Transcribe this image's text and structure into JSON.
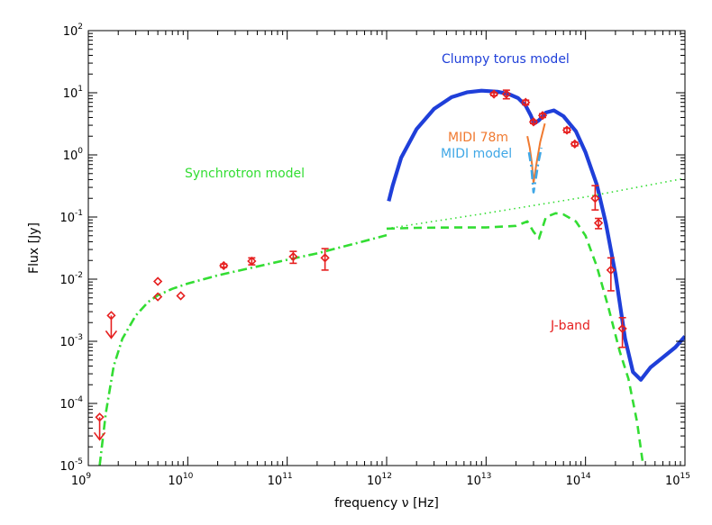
{
  "chart_data": {
    "type": "scatter",
    "title": "",
    "xlabel": "frequency ν [Hz]",
    "ylabel": "Flux [Jy]",
    "xscale": "log",
    "yscale": "log",
    "xlim": [
      1000000000.0,
      1000000000000000.0
    ],
    "ylim": [
      1e-05,
      100
    ],
    "x_ticks": [
      {
        "base": "10",
        "exp": "9"
      },
      {
        "base": "10",
        "exp": "10"
      },
      {
        "base": "10",
        "exp": "11"
      },
      {
        "base": "10",
        "exp": "12"
      },
      {
        "base": "10",
        "exp": "13"
      },
      {
        "base": "10",
        "exp": "14"
      },
      {
        "base": "10",
        "exp": "15"
      }
    ],
    "y_ticks": [
      {
        "base": "10",
        "exp": "-5"
      },
      {
        "base": "10",
        "exp": "-4"
      },
      {
        "base": "10",
        "exp": "-3"
      },
      {
        "base": "10",
        "exp": "-2"
      },
      {
        "base": "10",
        "exp": "-1"
      },
      {
        "base": "10",
        "exp": "0"
      },
      {
        "base": "10",
        "exp": "1"
      },
      {
        "base": "10",
        "exp": "2"
      }
    ],
    "annotations": [
      {
        "text": "Clumpy torus model",
        "color": "#1f3fd9"
      },
      {
        "text": "Synchrotron model",
        "color": "#33dd33"
      },
      {
        "text": "MIDI 78m",
        "color": "#f07a30"
      },
      {
        "text": "MIDI model",
        "color": "#3fa7e6"
      },
      {
        "text": "J-band",
        "color": "#e62020"
      }
    ],
    "series": [
      {
        "color": "#1f3fd9",
        "style": "solid-thick",
        "x": [
          1050000000000.0,
          1150000000000.0,
          1400000000000.0,
          2000000000000.0,
          3000000000000.0,
          4500000000000.0,
          6500000000000.0,
          9000000000000.0,
          13000000000000.0,
          17000000000000.0,
          21000000000000.0,
          25000000000000.0,
          28000000000000.0,
          30500000000000.0,
          34000000000000.0,
          40000000000000.0,
          48000000000000.0,
          60000000000000.0,
          80000000000000.0,
          100000000000000.0,
          130000000000000.0,
          160000000000000.0,
          200000000000000.0,
          250000000000000.0,
          300000000000000.0,
          360000000000000.0,
          450000000000000.0,
          600000000000000.0,
          800000000000000.0,
          1000000000000000.0
        ],
        "y": [
          0.18,
          0.32,
          0.9,
          2.6,
          5.5,
          8.5,
          10.2,
          10.8,
          10.4,
          9.5,
          8.2,
          6.2,
          4.4,
          3.2,
          3.6,
          4.8,
          5.2,
          4.2,
          2.4,
          1.1,
          0.33,
          0.08,
          0.012,
          0.0011,
          0.00032,
          0.00024,
          0.00038,
          0.00055,
          0.0008,
          0.0012
        ]
      },
      {
        "color": "#33dd33",
        "style": "dash-dot",
        "x": [
          1300000000.0,
          1500000000.0,
          1800000000.0,
          2200000000.0,
          3000000000.0,
          4000000000.0,
          5000000000.0,
          7000000000.0,
          10000000000.0,
          20000000000.0,
          50000000000.0,
          100000000000.0,
          200000000000.0,
          500000000000.0,
          1000000000000.0
        ],
        "y": [
          1e-05,
          7e-05,
          0.0004,
          0.0011,
          0.0026,
          0.0043,
          0.0055,
          0.007,
          0.0085,
          0.0115,
          0.016,
          0.0205,
          0.026,
          0.038,
          0.051
        ]
      },
      {
        "color": "#33dd33",
        "style": "dashed",
        "x": [
          1000000000000.0,
          2000000000000.0,
          5000000000000.0,
          10000000000000.0,
          20000000000000.0,
          26000000000000.0,
          30000000000000.0,
          34000000000000.0,
          40000000000000.0,
          50000000000000.0,
          60000000000000.0,
          80000000000000.0,
          100000000000000.0,
          130000000000000.0,
          170000000000000.0,
          220000000000000.0,
          270000000000000.0,
          330000000000000.0,
          380000000000000.0
        ],
        "y": [
          0.065,
          0.067,
          0.068,
          0.068,
          0.072,
          0.085,
          0.058,
          0.045,
          0.1,
          0.115,
          0.11,
          0.085,
          0.05,
          0.016,
          0.0035,
          0.0007,
          0.00025,
          5e-05,
          1e-05
        ]
      },
      {
        "color": "#33dd33",
        "style": "dotted",
        "x": [
          1000000000000.0,
          10000000000000.0,
          100000000000000.0,
          1000000000000000.0
        ],
        "y": [
          0.065,
          0.115,
          0.21,
          0.42
        ]
      },
      {
        "color": "#f07a30",
        "style": "solid",
        "x": [
          26000000000000.0,
          27500000000000.0,
          29000000000000.0,
          30000000000000.0,
          32000000000000.0,
          35000000000000.0,
          39000000000000.0
        ],
        "y": [
          2.0,
          1.3,
          0.7,
          0.35,
          0.7,
          1.6,
          3.2
        ]
      },
      {
        "color": "#3fa7e6",
        "style": "dash-dot",
        "x": [
          27000000000000.0,
          28500000000000.0,
          30000000000000.0,
          31500000000000.0,
          33500000000000.0,
          36000000000000.0
        ],
        "y": [
          1.1,
          0.65,
          0.25,
          0.4,
          0.75,
          1.3
        ]
      }
    ],
    "points": [
      {
        "x": 5000000000.0,
        "y": 0.0092,
        "err_lo": 0.0092,
        "err_hi": 0.0092
      },
      {
        "x": 5000000000.0,
        "y": 0.0052,
        "err_lo": 0.0052,
        "err_hi": 0.0052
      },
      {
        "x": 8500000000.0,
        "y": 0.0054,
        "err_lo": 0.0054,
        "err_hi": 0.0054
      },
      {
        "x": 23000000000.0,
        "y": 0.0165,
        "err_lo": 0.0155,
        "err_hi": 0.0175
      },
      {
        "x": 44000000000.0,
        "y": 0.0195,
        "err_lo": 0.017,
        "err_hi": 0.022
      },
      {
        "x": 115000000000.0,
        "y": 0.023,
        "err_lo": 0.018,
        "err_hi": 0.028
      },
      {
        "x": 240000000000.0,
        "y": 0.022,
        "err_lo": 0.014,
        "err_hi": 0.031
      },
      {
        "x": 12000000000000.0,
        "y": 9.5,
        "err_lo": 9.0,
        "err_hi": 10.0
      },
      {
        "x": 16000000000000.0,
        "y": 9.5,
        "err_lo": 8.0,
        "err_hi": 11.0
      },
      {
        "x": 25000000000000.0,
        "y": 7.0,
        "err_lo": 6.4,
        "err_hi": 7.6
      },
      {
        "x": 30000000000000.0,
        "y": 3.4,
        "err_lo": 3.2,
        "err_hi": 3.6
      },
      {
        "x": 37000000000000.0,
        "y": 4.3,
        "err_lo": 4.0,
        "err_hi": 4.6
      },
      {
        "x": 65000000000000.0,
        "y": 2.5,
        "err_lo": 2.3,
        "err_hi": 2.7
      },
      {
        "x": 78000000000000.0,
        "y": 1.5,
        "err_lo": 1.4,
        "err_hi": 1.6
      },
      {
        "x": 125000000000000.0,
        "y": 0.2,
        "err_lo": 0.13,
        "err_hi": 0.32
      },
      {
        "x": 135000000000000.0,
        "y": 0.08,
        "err_lo": 0.065,
        "err_hi": 0.095
      },
      {
        "x": 180000000000000.0,
        "y": 0.014,
        "err_lo": 0.0065,
        "err_hi": 0.022
      },
      {
        "x": 235000000000000.0,
        "y": 0.0016,
        "err_lo": 0.0008,
        "err_hi": 0.0024
      }
    ],
    "upper_limits": [
      {
        "x": 1700000000.0,
        "y": 0.0026
      },
      {
        "x": 1300000000.0,
        "y": 6e-05
      }
    ]
  }
}
